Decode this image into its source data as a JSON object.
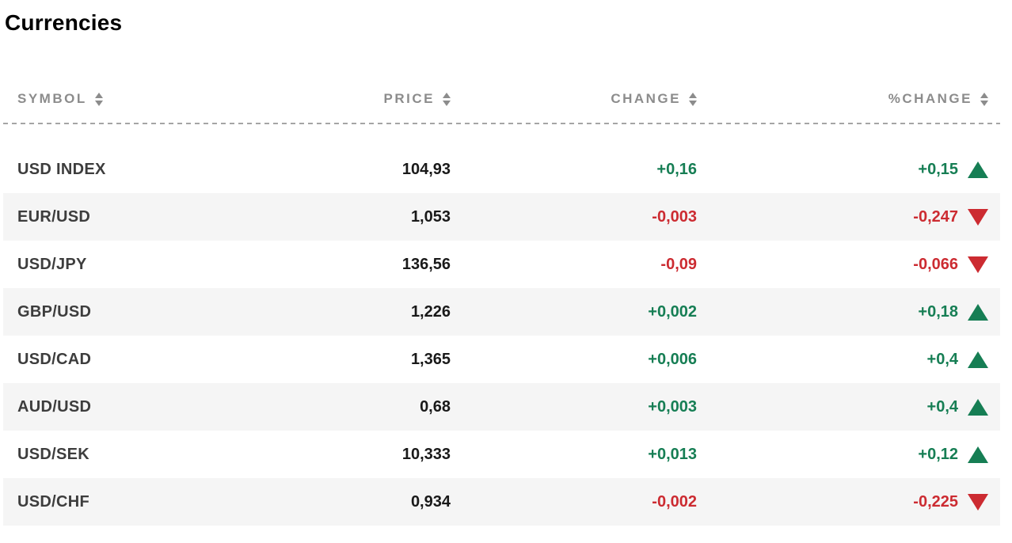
{
  "page": {
    "title": "Currencies"
  },
  "table": {
    "columns": [
      {
        "key": "symbol",
        "label": "SYMBOL"
      },
      {
        "key": "price",
        "label": "PRICE"
      },
      {
        "key": "change",
        "label": "CHANGE"
      },
      {
        "key": "pct_change",
        "label": "%CHANGE"
      }
    ],
    "rows": [
      {
        "symbol": "USD INDEX",
        "price": "104,93",
        "change": "+0,16",
        "pct_change": "+0,15",
        "direction": "up"
      },
      {
        "symbol": "EUR/USD",
        "price": "1,053",
        "change": "-0,003",
        "pct_change": "-0,247",
        "direction": "down"
      },
      {
        "symbol": "USD/JPY",
        "price": "136,56",
        "change": "-0,09",
        "pct_change": "-0,066",
        "direction": "down"
      },
      {
        "symbol": "GBP/USD",
        "price": "1,226",
        "change": "+0,002",
        "pct_change": "+0,18",
        "direction": "up"
      },
      {
        "symbol": "USD/CAD",
        "price": "1,365",
        "change": "+0,006",
        "pct_change": "+0,4",
        "direction": "up"
      },
      {
        "symbol": "AUD/USD",
        "price": "0,68",
        "change": "+0,003",
        "pct_change": "+0,4",
        "direction": "up"
      },
      {
        "symbol": "USD/SEK",
        "price": "10,333",
        "change": "+0,013",
        "pct_change": "+0,12",
        "direction": "up"
      },
      {
        "symbol": "USD/CHF",
        "price": "0,934",
        "change": "-0,002",
        "pct_change": "-0,225",
        "direction": "down"
      }
    ]
  },
  "icons": {
    "sort": "sort-arrows",
    "up": "up-triangle",
    "down": "down-triangle"
  },
  "colors": {
    "positive": "#167e54",
    "negative": "#cc2b31",
    "header_text": "#8c8c8c",
    "row_alt_bg": "#f5f5f5",
    "title_text": "#000000",
    "symbol_text": "#3d3d3d",
    "price_text": "#191919"
  }
}
